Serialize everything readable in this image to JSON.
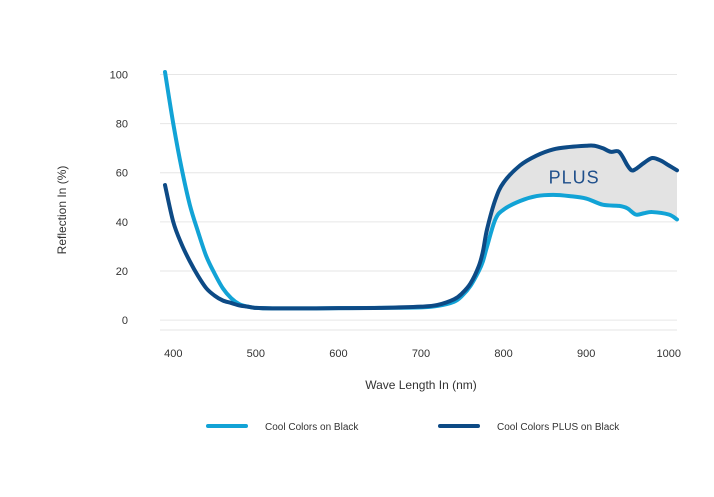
{
  "chart_data": {
    "type": "line",
    "title": "",
    "xlabel": "Wave Length In (nm)",
    "ylabel": "Reflection In (%)",
    "xlim": [
      390,
      1010
    ],
    "ylim": [
      -4,
      101
    ],
    "x_ticks": [
      400,
      500,
      600,
      700,
      800,
      900,
      1000
    ],
    "y_ticks": [
      0,
      20,
      40,
      60,
      80,
      100
    ],
    "grid": "horizontal",
    "legend_position": "bottom",
    "annotation": {
      "text": "PLUS",
      "x": 900,
      "y": 58,
      "color": "#1f4f8b"
    },
    "fill_between": {
      "series": [
        0,
        1
      ],
      "x_from": 780,
      "color": "#e3e3e3"
    },
    "colors": {
      "light": "#12a3d6",
      "dark": "#0d4a85",
      "grid": "#e6e6e6",
      "fill": "#e3e3e3"
    },
    "series": [
      {
        "name": "Cool Colors on Black",
        "color": "#12a3d6",
        "x": [
          390,
          400,
          410,
          420,
          430,
          440,
          450,
          460,
          470,
          480,
          490,
          500,
          520,
          560,
          600,
          650,
          700,
          720,
          740,
          750,
          760,
          770,
          775,
          780,
          790,
          800,
          820,
          840,
          860,
          880,
          900,
          920,
          940,
          950,
          960,
          970,
          980,
          1000,
          1010
        ],
        "values": [
          101,
          80,
          62,
          47,
          36,
          26,
          19,
          13,
          9,
          6.5,
          5.5,
          5,
          4.8,
          4.8,
          4.9,
          5,
          5.2,
          5.8,
          7.5,
          10,
          14,
          20,
          24,
          30,
          41,
          45,
          48.5,
          50.5,
          51,
          50.5,
          49.5,
          47,
          46.5,
          45.5,
          43,
          43.5,
          44,
          43,
          41
        ]
      },
      {
        "name": "Cool Colors PLUS on Black",
        "color": "#0d4a85",
        "x": [
          390,
          400,
          410,
          420,
          430,
          440,
          450,
          460,
          470,
          480,
          490,
          500,
          520,
          560,
          600,
          650,
          700,
          720,
          740,
          750,
          760,
          770,
          775,
          780,
          790,
          800,
          820,
          840,
          860,
          880,
          900,
          910,
          920,
          930,
          940,
          950,
          955,
          960,
          970,
          980,
          990,
          1000,
          1010
        ],
        "values": [
          55,
          40,
          31,
          24,
          18,
          13,
          10,
          8,
          7,
          6,
          5.5,
          5,
          4.8,
          4.8,
          4.9,
          5,
          5.5,
          6.2,
          8.5,
          11,
          15,
          22,
          28,
          37,
          49,
          56,
          63,
          67,
          69.5,
          70.5,
          71,
          71,
          70,
          68.5,
          68.5,
          63,
          61,
          61.5,
          64,
          66,
          65,
          63,
          61
        ]
      }
    ]
  }
}
